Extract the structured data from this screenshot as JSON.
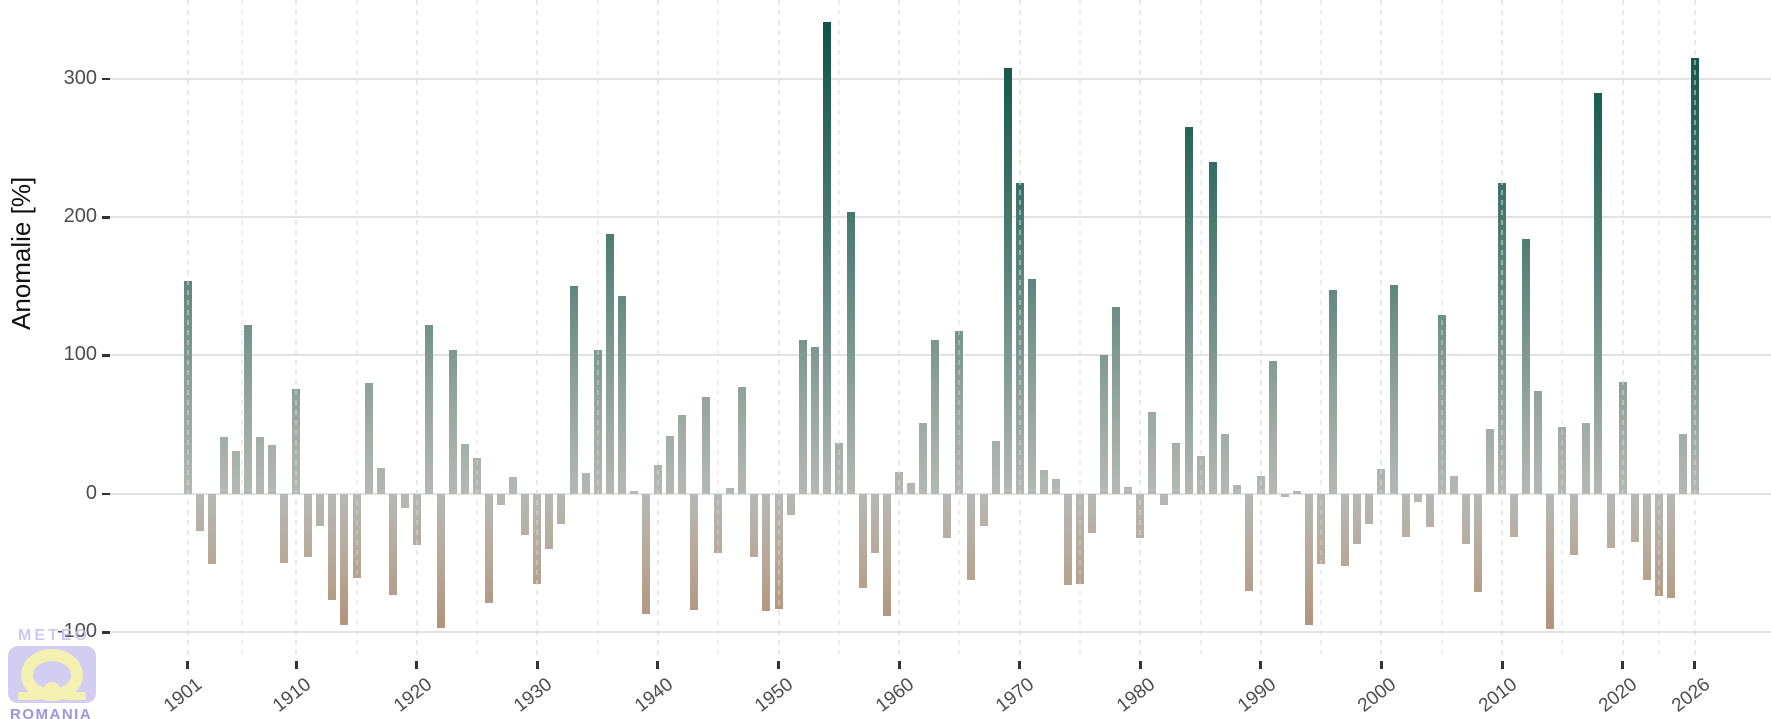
{
  "chart_data": {
    "type": "bar",
    "title": "",
    "xlabel": "",
    "ylabel": "Anomalie [%]",
    "x_start": 1901,
    "x_end": 2026,
    "x_step": 1,
    "x_ticks": [
      1901,
      1910,
      1920,
      1930,
      1940,
      1950,
      1960,
      1970,
      1980,
      1990,
      2000,
      2010,
      2020,
      2026
    ],
    "x_minor_gridlines": [
      1905.5,
      1915,
      1925,
      1935,
      1945,
      1955,
      1965,
      1975,
      1985,
      1995,
      2005,
      2015,
      2023
    ],
    "y_ticks": [
      -100,
      0,
      100,
      200,
      300
    ],
    "ylim": [
      -120,
      357
    ],
    "grid": {
      "horizontal": "solid",
      "vertical": "dashed"
    },
    "legend": "none",
    "values": [
      154,
      -27,
      -51,
      41,
      31,
      122,
      41,
      35,
      -50,
      76,
      -46,
      -23,
      -77,
      -95,
      -61,
      80,
      19,
      -73,
      -10,
      -37,
      122,
      -97,
      104,
      36,
      26,
      -79,
      -8,
      12,
      -30,
      -65,
      -40,
      -22,
      150,
      15,
      104,
      188,
      143,
      2,
      -87,
      21,
      42,
      57,
      -84,
      70,
      -43,
      4,
      77,
      -46,
      -85,
      -83,
      -15,
      111,
      106,
      341,
      37,
      204,
      -68,
      -43,
      -88,
      16,
      8,
      51,
      111,
      -32,
      118,
      -62,
      -23,
      38,
      308,
      225,
      155,
      17,
      11,
      -66,
      -65,
      -28,
      100,
      135,
      5,
      -32,
      59,
      -8,
      37,
      265,
      27,
      240,
      43,
      6,
      -70,
      13,
      96,
      -2,
      2,
      -95,
      -51,
      147,
      -52,
      -36,
      -22,
      18,
      151,
      -31,
      -6,
      -24,
      129,
      13,
      -36,
      -71,
      47,
      225,
      -31,
      184,
      74,
      -98,
      48,
      -44,
      51,
      290,
      -39,
      81,
      -35,
      -62,
      -74,
      -75,
      43,
      315
    ],
    "color_scale": [
      {
        "value": -100,
        "color": "#b09278"
      },
      {
        "value": -50,
        "color": "#b8a896"
      },
      {
        "value": 0,
        "color": "#b5b8b5"
      },
      {
        "value": 50,
        "color": "#9eaba4"
      },
      {
        "value": 100,
        "color": "#7f9a91"
      },
      {
        "value": 160,
        "color": "#5a847a"
      },
      {
        "value": 225,
        "color": "#397167"
      },
      {
        "value": 290,
        "color": "#195c50"
      },
      {
        "value": 345,
        "color": "#0d5348"
      }
    ]
  },
  "axis_style": {
    "tick_text_color": "#4d4d4d",
    "title_color": "#111111",
    "grid_color": "#e3e3e3",
    "tick_mark_color": "#333333",
    "background": "#ffffff"
  },
  "watermark": {
    "line1": "METEO",
    "line2": "ROMANIA",
    "top_text_color": "#c6beee",
    "bottom_text_color": "#8b83d8",
    "badge_color": "#ccc5f0",
    "emblem_color": "#f3eea4"
  }
}
